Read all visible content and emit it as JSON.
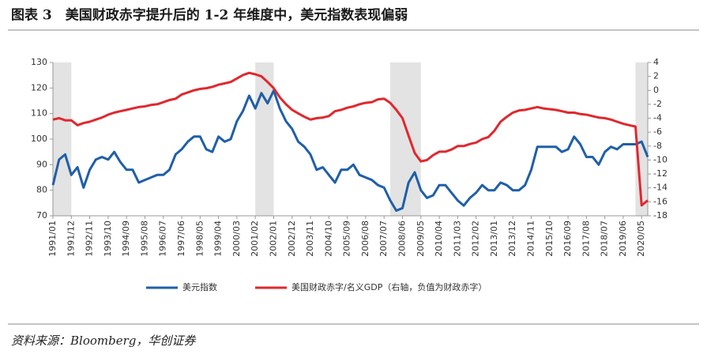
{
  "chart_data": {
    "type": "line",
    "title": "图表 3　美国财政赤字提升后的 1-2 年维度中，美元指数表现偏弱",
    "source": "资料来源：Bloomberg，华创证券",
    "categories": [
      "1991/01",
      null,
      null,
      "1991/12",
      null,
      null,
      "1992/11",
      null,
      null,
      "1993/10",
      null,
      null,
      "1994/09",
      null,
      null,
      "1995/08",
      null,
      null,
      "1996/07",
      null,
      null,
      "1997/06",
      null,
      null,
      "1998/05",
      null,
      null,
      "1999/04",
      null,
      null,
      "2000/03",
      null,
      null,
      "2001/02",
      null,
      null,
      "2002/01",
      null,
      null,
      "2002/12",
      null,
      null,
      "2003/11",
      null,
      null,
      "2004/10",
      null,
      null,
      "2005/09",
      null,
      null,
      "2006/08",
      null,
      null,
      "2007/07",
      null,
      null,
      "2008/06",
      null,
      null,
      "2009/05",
      null,
      null,
      "2010/04",
      null,
      null,
      "2011/03",
      null,
      null,
      "2012/02",
      null,
      null,
      "2013/01",
      null,
      null,
      "2013/12",
      null,
      null,
      "2014/11",
      null,
      null,
      "2015/10",
      null,
      null,
      "2016/09",
      null,
      null,
      "2017/08",
      null,
      null,
      "2018/07",
      null,
      null,
      "2019/06",
      null,
      null,
      "2020/05",
      null
    ],
    "series": [
      {
        "name": "美元指数",
        "color": "#1f5fa8",
        "axis": "y",
        "values": [
          82,
          92,
          94,
          86,
          89,
          81,
          88,
          92,
          93,
          92,
          95,
          91,
          88,
          88,
          83,
          84,
          85,
          86,
          86,
          88,
          94,
          96,
          99,
          101,
          101,
          96,
          95,
          101,
          99,
          100,
          107,
          111,
          117,
          112,
          118,
          114,
          119,
          112,
          107,
          104,
          99,
          97,
          94,
          88,
          89,
          86,
          83,
          88,
          88,
          90,
          86,
          85,
          84,
          82,
          81,
          76,
          72,
          73,
          83,
          87,
          80,
          77,
          78,
          82,
          82,
          79,
          76,
          74,
          77,
          79,
          82,
          80,
          80,
          83,
          82,
          80,
          80,
          82,
          88,
          97,
          97,
          97,
          97,
          95,
          96,
          101,
          98,
          93,
          93,
          90,
          95,
          97,
          96,
          98,
          98,
          98,
          99,
          93
        ]
      },
      {
        "name": "美国财政赤字/名义GDP（右轴，负值为财政赤字）",
        "color": "#e0282e",
        "axis": "y2",
        "values": [
          -4.2,
          -4.0,
          -4.3,
          -4.3,
          -5.0,
          -4.7,
          -4.5,
          -4.2,
          -3.9,
          -3.5,
          -3.2,
          -3.0,
          -2.8,
          -2.6,
          -2.4,
          -2.3,
          -2.1,
          -2.0,
          -1.7,
          -1.4,
          -1.2,
          -0.6,
          -0.3,
          0,
          0.2,
          0.3,
          0.5,
          0.8,
          1.0,
          1.2,
          1.7,
          2.2,
          2.5,
          2.3,
          2.0,
          1.2,
          0.3,
          -1.0,
          -2.0,
          -2.8,
          -3.3,
          -3.8,
          -4.2,
          -4.0,
          -3.9,
          -3.7,
          -3.0,
          -2.8,
          -2.5,
          -2.3,
          -2.0,
          -1.8,
          -1.7,
          -1.3,
          -1.2,
          -1.8,
          -2.8,
          -4.0,
          -6.5,
          -9.0,
          -10.2,
          -10.0,
          -9.3,
          -8.8,
          -8.8,
          -8.5,
          -8.0,
          -8.0,
          -7.7,
          -7.5,
          -7.0,
          -6.7,
          -5.8,
          -4.5,
          -3.8,
          -3.2,
          -2.9,
          -2.8,
          -2.6,
          -2.4,
          -2.6,
          -2.7,
          -2.8,
          -3.0,
          -3.2,
          -3.2,
          -3.4,
          -3.5,
          -3.7,
          -3.9,
          -4.0,
          -4.2,
          -4.5,
          -4.8,
          -5.0,
          -5.2,
          -16.5,
          -15.8
        ]
      }
    ],
    "shaded": [
      {
        "start": 0,
        "end": 3
      },
      {
        "start": 33,
        "end": 36
      },
      {
        "start": 55,
        "end": 60
      },
      {
        "start": 95,
        "end": 97
      }
    ],
    "shade_color": "#e3e3e3",
    "ylim": [
      70,
      130
    ],
    "yticks": [
      70,
      80,
      90,
      100,
      110,
      120,
      130
    ],
    "y2lim": [
      -18,
      4
    ],
    "y2ticks": [
      -18,
      -16,
      -14,
      -12,
      -10,
      -8,
      -6,
      -4,
      -2,
      0,
      2,
      4
    ],
    "legend": "bottom"
  }
}
